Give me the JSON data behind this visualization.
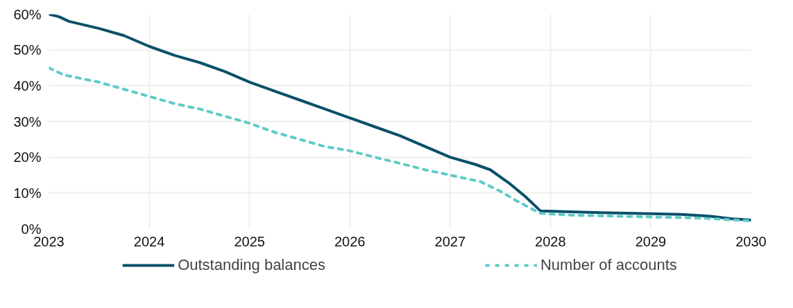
{
  "chart_data": {
    "type": "line",
    "x": [
      2023,
      2023.1,
      2023.2,
      2023.5,
      2023.75,
      2024,
      2024.25,
      2024.5,
      2024.75,
      2025,
      2025.25,
      2025.5,
      2025.75,
      2026,
      2026.25,
      2026.5,
      2026.75,
      2027,
      2027.25,
      2027.4,
      2027.6,
      2027.75,
      2027.9,
      2028.5,
      2029,
      2029.3,
      2029.6,
      2029.8,
      2030
    ],
    "series": [
      {
        "name": "Outstanding balances",
        "color": "#0b5069",
        "line_style": "solid",
        "values": [
          60,
          59.3,
          58,
          56,
          54,
          51,
          48.5,
          46.5,
          44,
          41,
          38.5,
          36,
          33.5,
          31,
          28.5,
          26,
          23,
          20,
          18,
          16.5,
          12.5,
          9,
          5,
          4.5,
          4.2,
          4.0,
          3.5,
          2.8,
          2.4
        ]
      },
      {
        "name": "Number of accounts",
        "color": "#5ecbc6",
        "line_style": "dashed",
        "x": [
          2023,
          2023.15,
          2023.5,
          2023.75,
          2024,
          2024.25,
          2024.5,
          2024.75,
          2025,
          2025.25,
          2025.5,
          2025.75,
          2026,
          2026.25,
          2026.5,
          2026.75,
          2027,
          2027.3,
          2027.5,
          2027.65,
          2027.9,
          2028.2,
          2029,
          2029.5,
          2029.8,
          2030
        ],
        "values": [
          45,
          43,
          41,
          39,
          37,
          35,
          33.5,
          31.5,
          29.5,
          27,
          25,
          23,
          21.8,
          20,
          18.3,
          16.5,
          15,
          13.2,
          10.5,
          8,
          4.3,
          3.8,
          3.3,
          3.0,
          2.5,
          2.2
        ]
      }
    ],
    "xlim": [
      2023,
      2030
    ],
    "xticks": [
      2023,
      2024,
      2025,
      2026,
      2027,
      2028,
      2029,
      2030
    ],
    "ylim": [
      0,
      60
    ],
    "yticks": [
      {
        "value": 0,
        "label": "0%"
      },
      {
        "value": 10,
        "label": "10%"
      },
      {
        "value": 20,
        "label": "20%"
      },
      {
        "value": 30,
        "label": "30%"
      },
      {
        "value": 40,
        "label": "40%"
      },
      {
        "value": 50,
        "label": "50%"
      },
      {
        "value": 60,
        "label": "60%"
      }
    ],
    "grid": true,
    "legend": "bottom"
  }
}
